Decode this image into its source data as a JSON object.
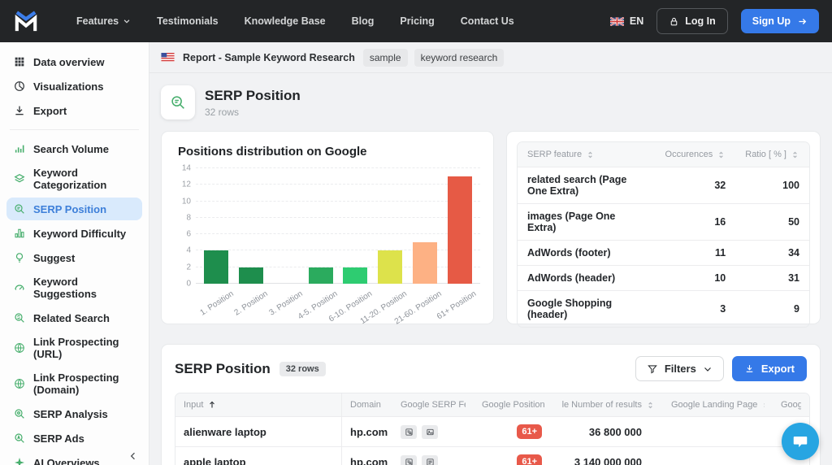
{
  "navbar": {
    "menu": [
      {
        "label": "Features",
        "dropdown": true
      },
      {
        "label": "Testimonials",
        "dropdown": false
      },
      {
        "label": "Knowledge Base",
        "dropdown": false
      },
      {
        "label": "Blog",
        "dropdown": false
      },
      {
        "label": "Pricing",
        "dropdown": false
      },
      {
        "label": "Contact Us",
        "dropdown": false
      }
    ],
    "language": "EN",
    "login_label": "Log In",
    "signup_label": "Sign Up"
  },
  "sidebar": {
    "report_items": [
      {
        "icon": "grid",
        "label": "Data overview",
        "selected": false
      },
      {
        "icon": "pie",
        "label": "Visualizations",
        "selected": false
      },
      {
        "icon": "download",
        "label": "Export",
        "selected": false
      }
    ],
    "tool_items": [
      {
        "icon": "bars",
        "label": "Search Volume",
        "selected": false
      },
      {
        "icon": "layers",
        "label": "Keyword Categorization",
        "selected": false
      },
      {
        "icon": "serp-position",
        "label": "SERP Position",
        "selected": true
      },
      {
        "icon": "difficulty",
        "label": "Keyword Difficulty",
        "selected": false
      },
      {
        "icon": "bulb",
        "label": "Suggest",
        "selected": false
      },
      {
        "icon": "gauge",
        "label": "Keyword Suggestions",
        "selected": false
      },
      {
        "icon": "related-search",
        "label": "Related Search",
        "selected": false
      },
      {
        "icon": "globe-link",
        "label": "Link Prospecting (URL)",
        "selected": false
      },
      {
        "icon": "globe-link",
        "label": "Link Prospecting (Domain)",
        "selected": false
      },
      {
        "icon": "serp-analysis",
        "label": "SERP Analysis",
        "selected": false
      },
      {
        "icon": "serp-ads",
        "label": "SERP Ads",
        "selected": false
      },
      {
        "icon": "ai-sparkle",
        "label": "AI Overviews",
        "selected": false
      }
    ]
  },
  "breadcrumb": {
    "report_label": "Report - Sample Keyword Research",
    "tags": [
      {
        "label": "sample"
      },
      {
        "label": "keyword research"
      }
    ]
  },
  "page_header": {
    "title": "SERP Position",
    "subtitle": "32 rows"
  },
  "chart_data": {
    "type": "bar",
    "title": "Positions distribution on Google",
    "categories": [
      "1. Position",
      "2. Position",
      "3. Position",
      "4-5. Position",
      "6-10. Position",
      "11-20. Position",
      "21-60. Position",
      "61+ Position"
    ],
    "values": [
      4,
      2,
      0,
      2,
      2,
      4,
      5,
      13
    ],
    "colors": [
      "#1e8e4d",
      "#1e8e4d",
      "#23984f",
      "#2bab5e",
      "#2ecc71",
      "#dde24b",
      "#fdb184",
      "#e65a45"
    ],
    "xlabel": "",
    "ylabel": "",
    "ylim": [
      0,
      14
    ],
    "ytick_step": 2,
    "grid": true,
    "legend": false
  },
  "feature_table": {
    "headers": [
      {
        "label": "SERP feature",
        "sortable": true,
        "align": "left"
      },
      {
        "label": "Occurences",
        "sortable": true,
        "align": "right"
      },
      {
        "label": "Ratio [ % ]",
        "sortable": true,
        "align": "right"
      }
    ],
    "rows": [
      {
        "feature": "related search (Page One Extra)",
        "occurences": "32",
        "ratio": "100"
      },
      {
        "feature": "images (Page One Extra)",
        "occurences": "16",
        "ratio": "50"
      },
      {
        "feature": "AdWords (footer)",
        "occurences": "11",
        "ratio": "34"
      },
      {
        "feature": "AdWords (header)",
        "occurences": "10",
        "ratio": "31"
      },
      {
        "feature": "Google Shopping (header)",
        "occurences": "3",
        "ratio": "9"
      }
    ]
  },
  "serp_table": {
    "title": "SERP Position",
    "rows_badge": "32 rows",
    "filters_label": "Filters",
    "export_label": "Export",
    "columns": [
      {
        "label": "Input",
        "sort": "asc"
      },
      {
        "label": "Domain",
        "sort": "both"
      },
      {
        "label": "Google SERP Feature",
        "sort": "none"
      },
      {
        "label": "Google Position",
        "sort": "both"
      },
      {
        "label": "Google Number of results",
        "sort": "both"
      },
      {
        "label": "Google Landing Page",
        "sort": "both"
      },
      {
        "label": "Google",
        "sort": "none"
      }
    ],
    "rows": [
      {
        "input": "alienware laptop",
        "domain": "hp.com",
        "features": [
          "related-search-box",
          "images-box"
        ],
        "position": "61+",
        "results": "36 800 000",
        "landing": ""
      },
      {
        "input": "apple laptop",
        "domain": "hp.com",
        "features": [
          "related-search-box",
          "adwords-box"
        ],
        "position": "61+",
        "results": "3 140 000 000",
        "landing": ""
      }
    ]
  },
  "colors": {
    "accent_blue": "#3579e8",
    "selected_item_bg": "#d9eafc",
    "badge_red": "#e8594a",
    "icon_green": "#46ae6c",
    "chat_blue": "#27a5e2",
    "navbar_bg": "#232527"
  }
}
